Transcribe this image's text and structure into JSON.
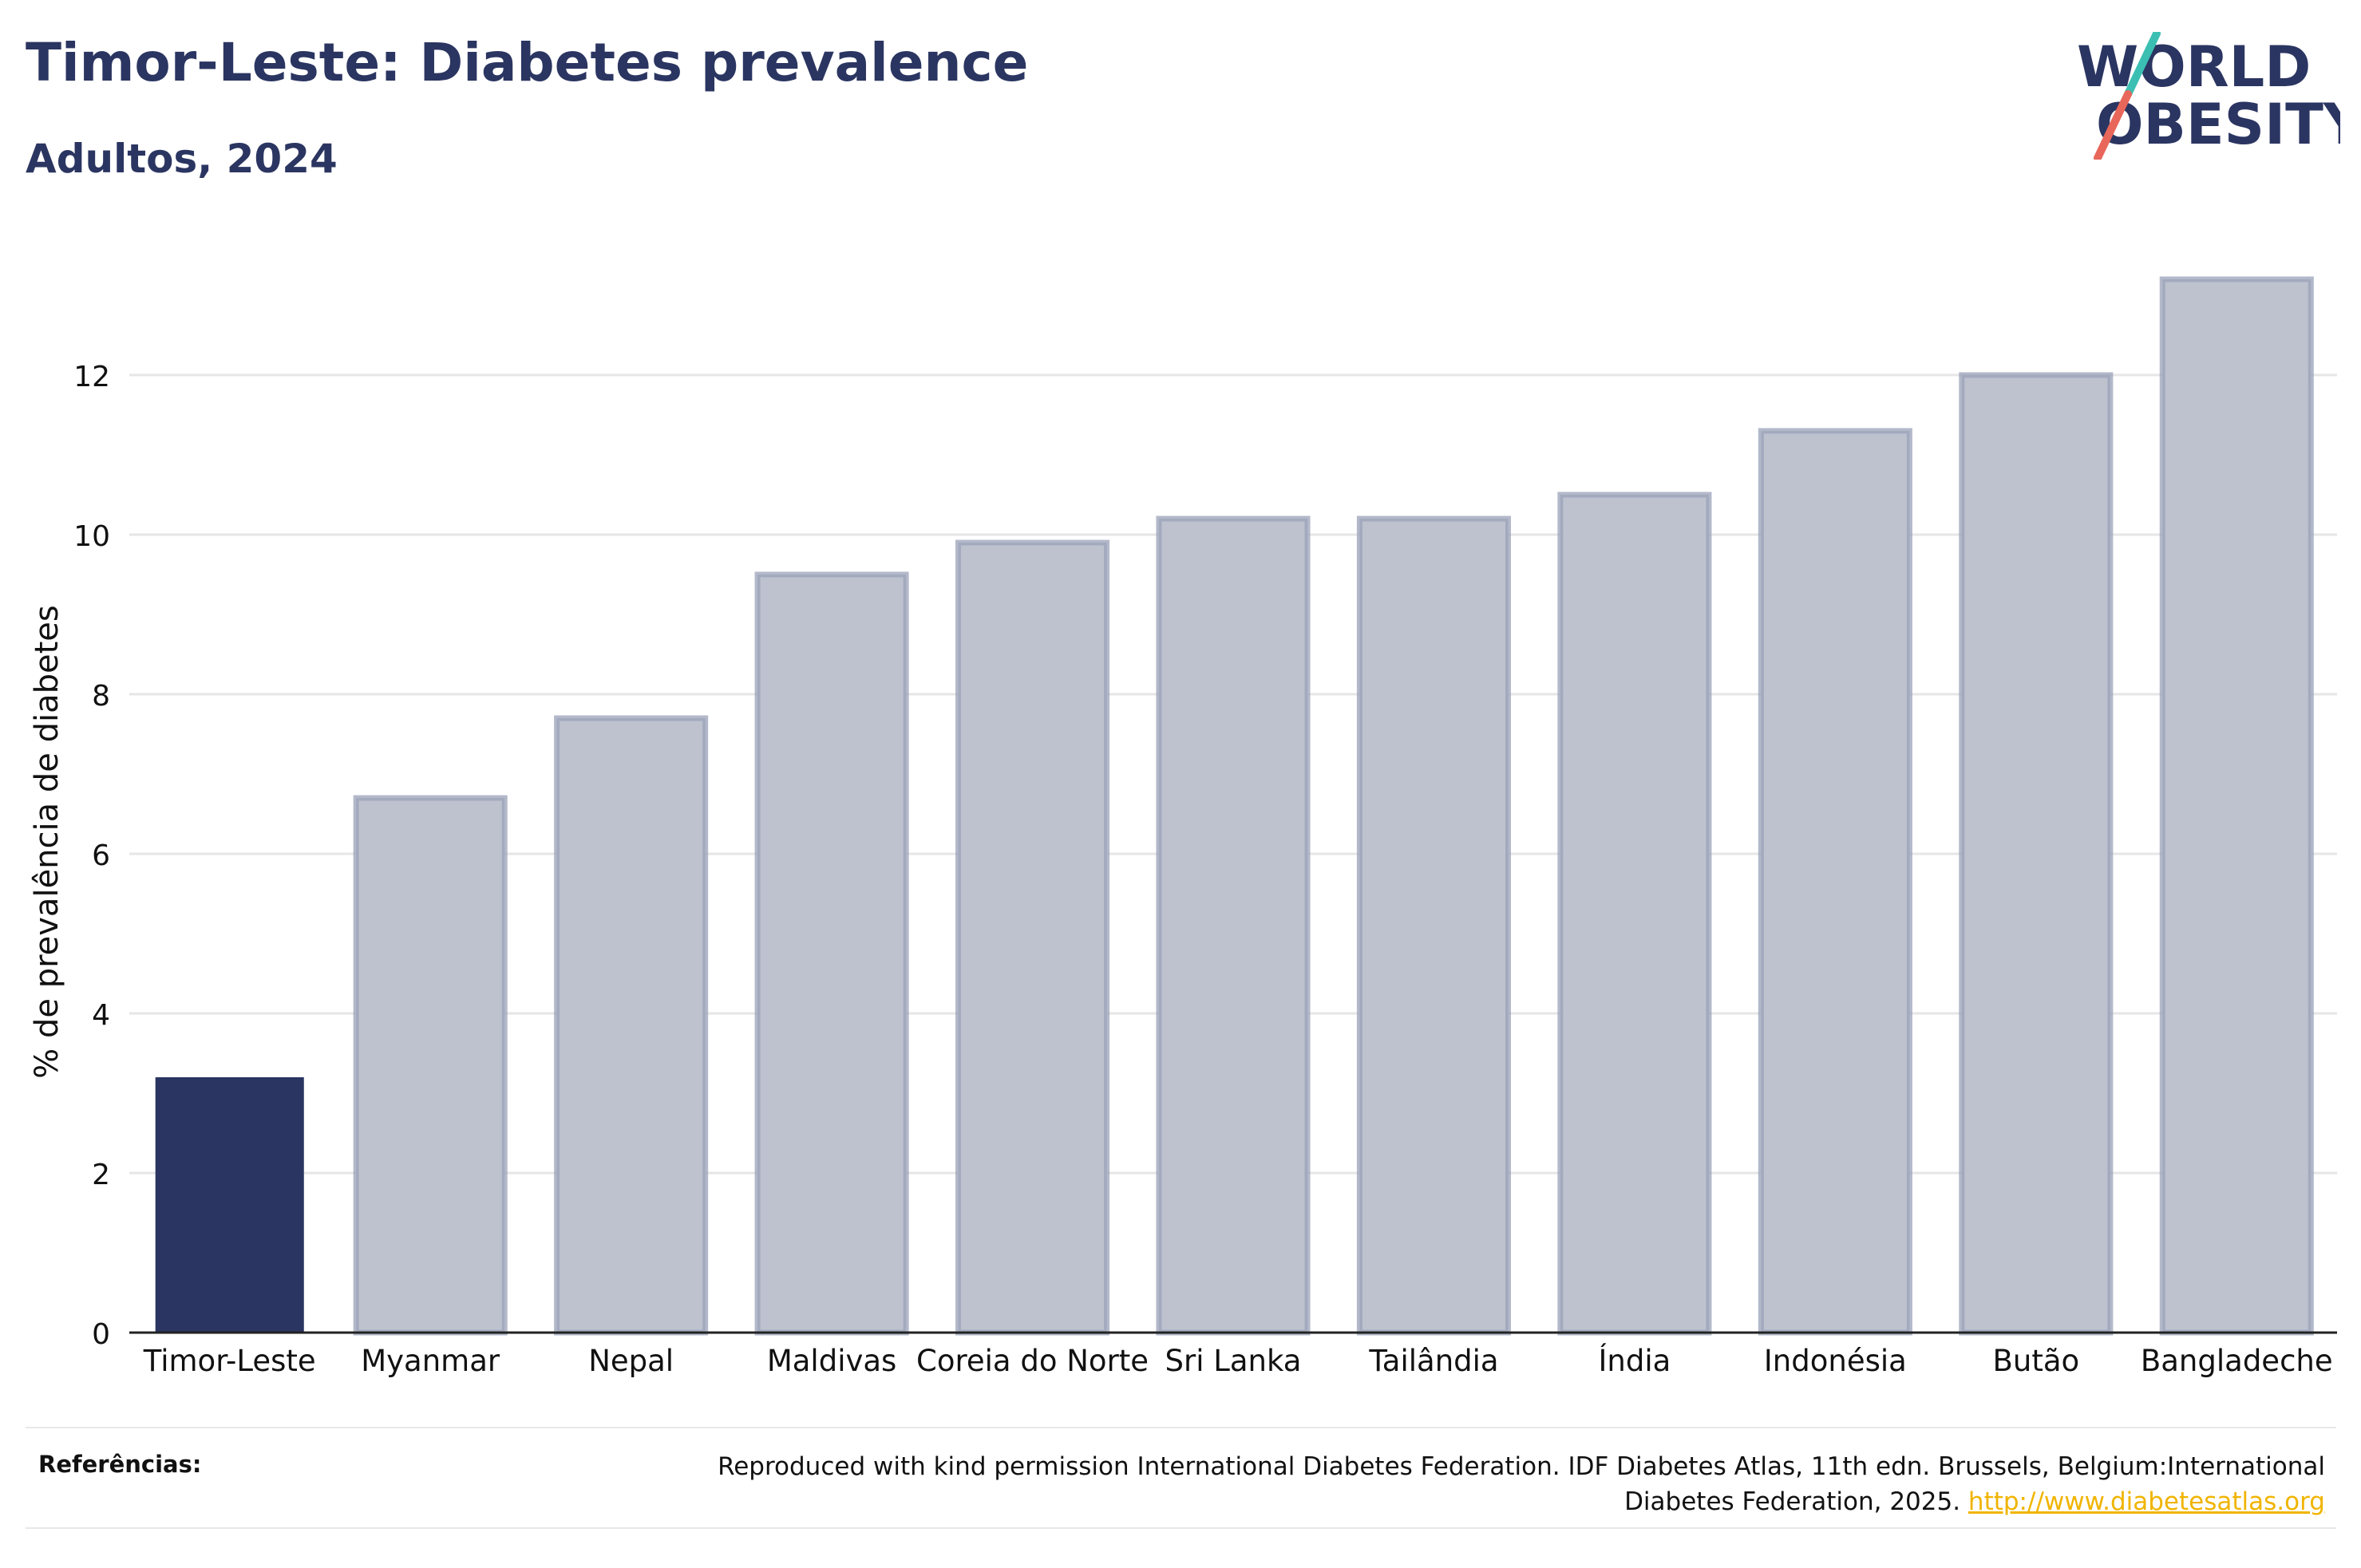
{
  "header": {
    "title": "Timor-Leste: Diabetes prevalence",
    "subtitle": "Adultos, 2024"
  },
  "logo": {
    "line1": "WORLD",
    "line2": "OBESITY",
    "brand_color": "#2b3561",
    "slash_colors": [
      "#3bbfb3",
      "#e8675a"
    ]
  },
  "chart_data": {
    "type": "bar",
    "categories": [
      "Timor-Leste",
      "Myanmar",
      "Nepal",
      "Maldivas",
      "Coreia do Norte",
      "Sri Lanka",
      "Tailândia",
      "Índia",
      "Indonésia",
      "Butão",
      "Bangladeche"
    ],
    "values": [
      3.2,
      6.7,
      7.7,
      9.5,
      9.9,
      10.2,
      10.2,
      10.5,
      11.3,
      12.0,
      13.2
    ],
    "highlight_index": 0,
    "highlight_color": "#2b3561",
    "bar_color": "#bec2cf",
    "bar_border_color": "#9aa1b8",
    "ylabel": "% de prevalência de diabetes",
    "xlabel": "",
    "ylim": [
      0,
      13.6
    ],
    "yticks": [
      0,
      2,
      4,
      6,
      8,
      10,
      12
    ],
    "grid": true
  },
  "references": {
    "label": "Referências:",
    "text": "Reproduced with kind permission International Diabetes Federation. IDF Diabetes Atlas, 11th edn. Brussels, Belgium:International Diabetes Federation, 2025. ",
    "link": "http://www.diabetesatlas.org"
  }
}
